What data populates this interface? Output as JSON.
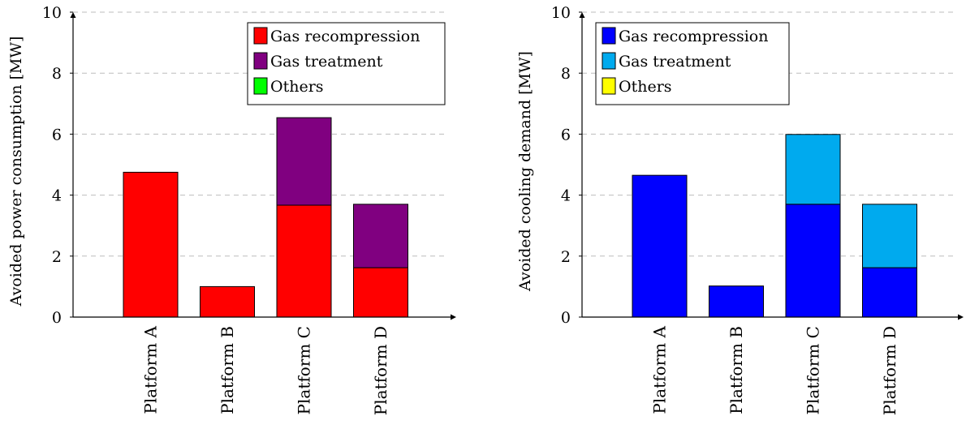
{
  "chart_data": [
    {
      "type": "bar",
      "stacked": true,
      "title": "",
      "xlabel": "",
      "ylabel": "Avoided power consumption [MW]",
      "ylim": [
        0,
        10
      ],
      "yticks": [
        0,
        2,
        4,
        6,
        8,
        10
      ],
      "grid": true,
      "legend_position": "top-right",
      "categories": [
        "Platform A",
        "Platform B",
        "Platform C",
        "Platform D"
      ],
      "series": [
        {
          "name": "Gas recompression",
          "color": "#ff0000",
          "values": [
            4.75,
            1.0,
            3.67,
            1.62
          ]
        },
        {
          "name": "Gas treatment",
          "color": "#800080",
          "values": [
            0,
            0,
            2.87,
            2.08
          ]
        },
        {
          "name": "Others",
          "color": "#00ff00",
          "values": [
            0,
            0,
            0,
            0
          ]
        }
      ]
    },
    {
      "type": "bar",
      "stacked": true,
      "title": "",
      "xlabel": "",
      "ylabel": "Avoided cooling demand [MW]",
      "ylim": [
        0,
        10
      ],
      "yticks": [
        0,
        2,
        4,
        6,
        8,
        10
      ],
      "grid": true,
      "legend_position": "top-right",
      "categories": [
        "Platform A",
        "Platform B",
        "Platform C",
        "Platform D"
      ],
      "series": [
        {
          "name": "Gas recompression",
          "color": "#0000ff",
          "values": [
            4.65,
            1.02,
            3.7,
            1.62
          ]
        },
        {
          "name": "Gas treatment",
          "color": "#00aaee",
          "values": [
            0,
            0,
            2.29,
            2.08
          ]
        },
        {
          "name": "Others",
          "color": "#ffff00",
          "values": [
            0,
            0,
            0,
            0
          ]
        }
      ]
    }
  ]
}
